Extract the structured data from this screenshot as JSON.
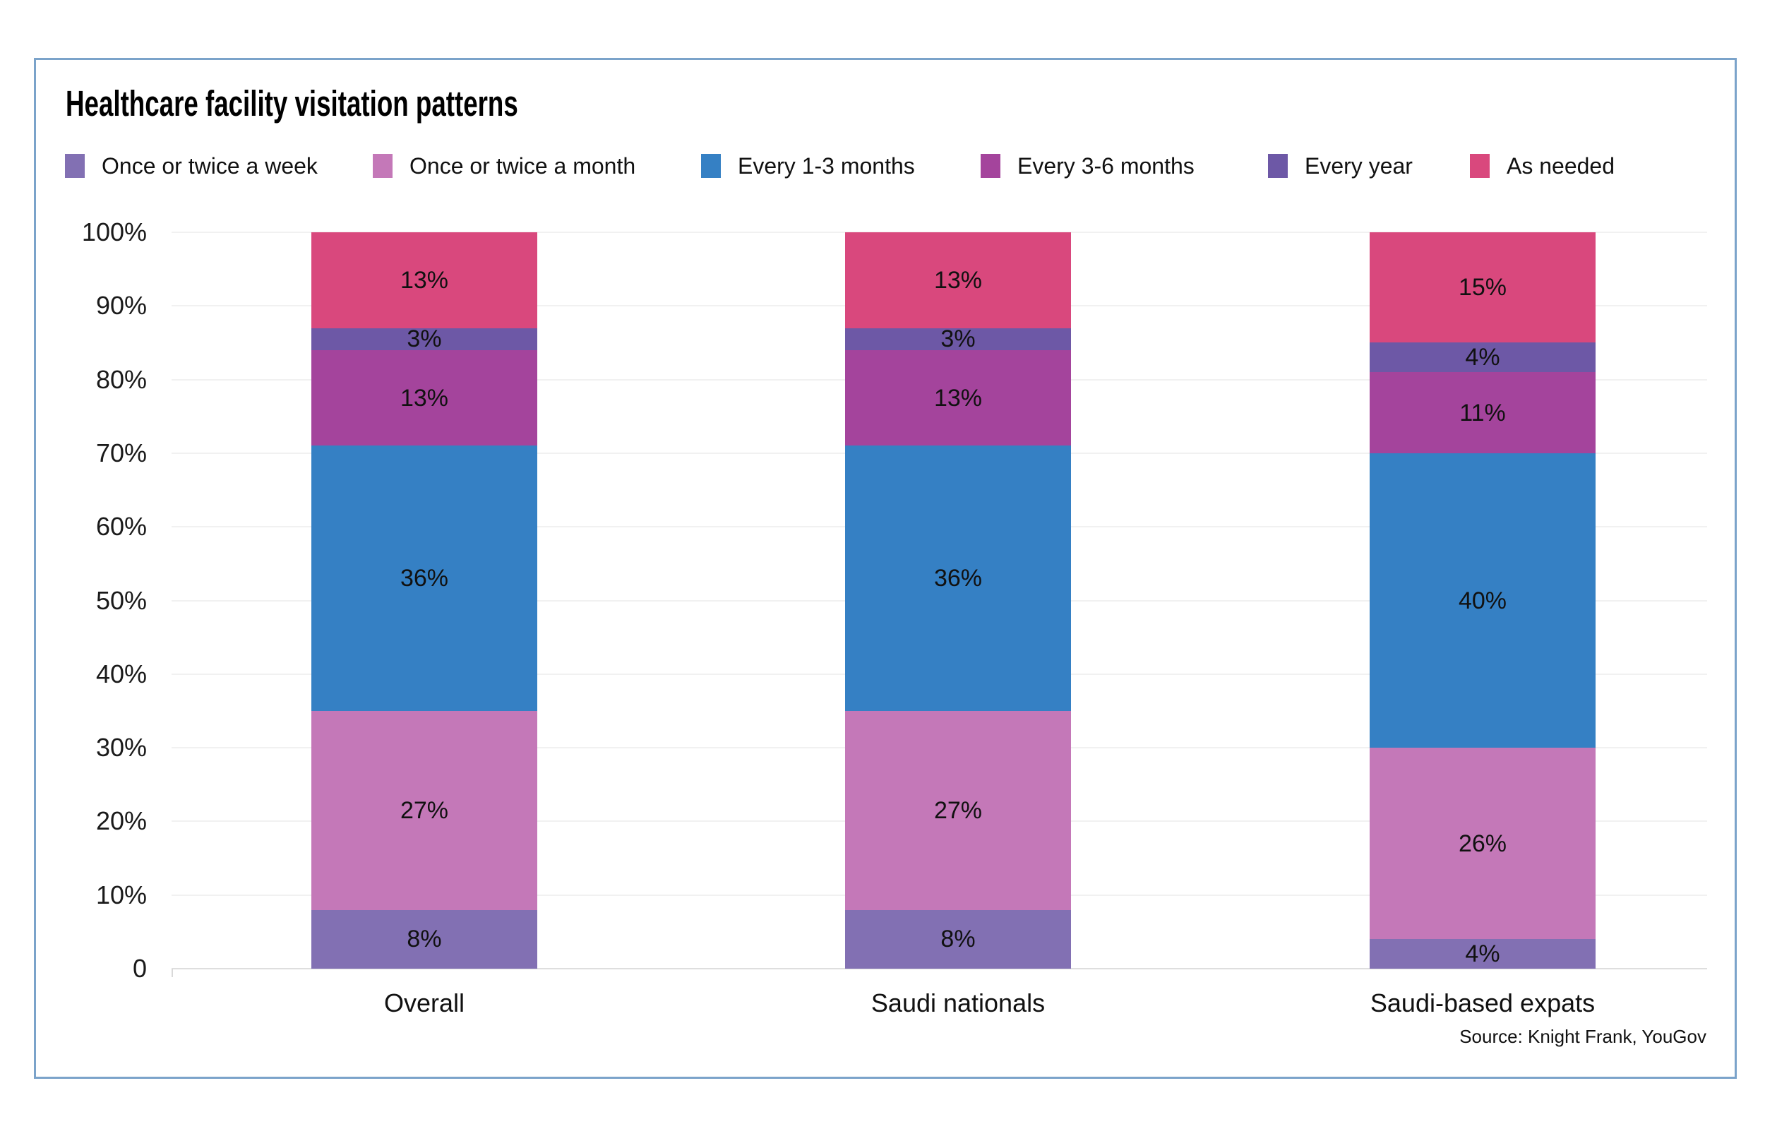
{
  "title": "Healthcare facility visitation patterns",
  "source": "Source: Knight Frank, YouGov",
  "panel": {
    "border_color": "#7ba3ca"
  },
  "chart_data": {
    "type": "bar",
    "subtype": "stacked-column",
    "title": "Healthcare facility visitation patterns",
    "categories": [
      "Overall",
      "Saudi nationals",
      "Saudi-based expats"
    ],
    "series": [
      {
        "name": "Once or twice a week",
        "color": "#8270b3",
        "values": [
          8,
          8,
          4
        ]
      },
      {
        "name": "Once or twice a month",
        "color": "#c478b8",
        "values": [
          27,
          27,
          26
        ]
      },
      {
        "name": "Every 1-3 months",
        "color": "#3580c4",
        "values": [
          36,
          36,
          40
        ]
      },
      {
        "name": "Every 3-6 months",
        "color": "#a4449c",
        "values": [
          13,
          13,
          11
        ]
      },
      {
        "name": "Every year",
        "color": "#6d58a6",
        "values": [
          3,
          3,
          4
        ]
      },
      {
        "name": "As needed",
        "color": "#d9487d",
        "values": [
          13,
          13,
          15
        ]
      }
    ],
    "value_suffix": "%",
    "ylabel": "",
    "xlabel": "",
    "y_axis": {
      "min": 0,
      "max": 100,
      "tick_labels": [
        "100%",
        "90%",
        "80%",
        "70%",
        "60%",
        "50%",
        "40%",
        "30%",
        "20%",
        "10%",
        "0"
      ]
    },
    "grid": true,
    "legend_position": "top",
    "source_note": "Source: Knight Frank, YouGov"
  }
}
